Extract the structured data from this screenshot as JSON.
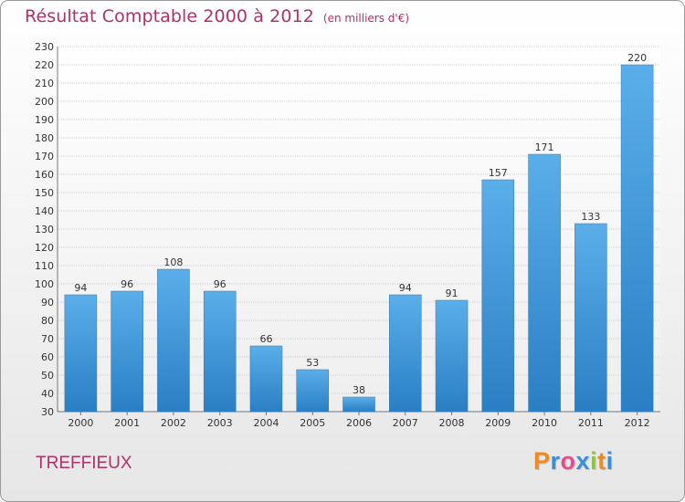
{
  "chart": {
    "title": "Résultat Comptable 2000 à 2012",
    "unit_label": "(en milliers d'€)",
    "commune": "TREFFIEUX",
    "logo_letters": [
      "P",
      "r",
      "o",
      "x",
      "i",
      "t",
      "i"
    ],
    "logo_colors": [
      "#f08a1d",
      "#3a8fd4",
      "#e84c8b",
      "#3a8fd4",
      "#8cc63f",
      "#f08a1d",
      "#3a8fd4"
    ]
  },
  "colors": {
    "bar_light": "#5aaee9",
    "bar_dark": "#2a7fc4",
    "title": "#b0306a",
    "grid": "#cfcfcf"
  },
  "chart_data": {
    "type": "bar",
    "categories": [
      "2000",
      "2001",
      "2002",
      "2003",
      "2004",
      "2005",
      "2006",
      "2007",
      "2008",
      "2009",
      "2010",
      "2011",
      "2012"
    ],
    "values": [
      94,
      96,
      108,
      96,
      66,
      53,
      38,
      94,
      91,
      157,
      171,
      133,
      220
    ],
    "title": "Résultat Comptable 2000 à 2012",
    "xlabel": "",
    "ylabel": "",
    "ylim": [
      30,
      230
    ],
    "ytick_step": 10,
    "grid": true,
    "legend": "none"
  }
}
